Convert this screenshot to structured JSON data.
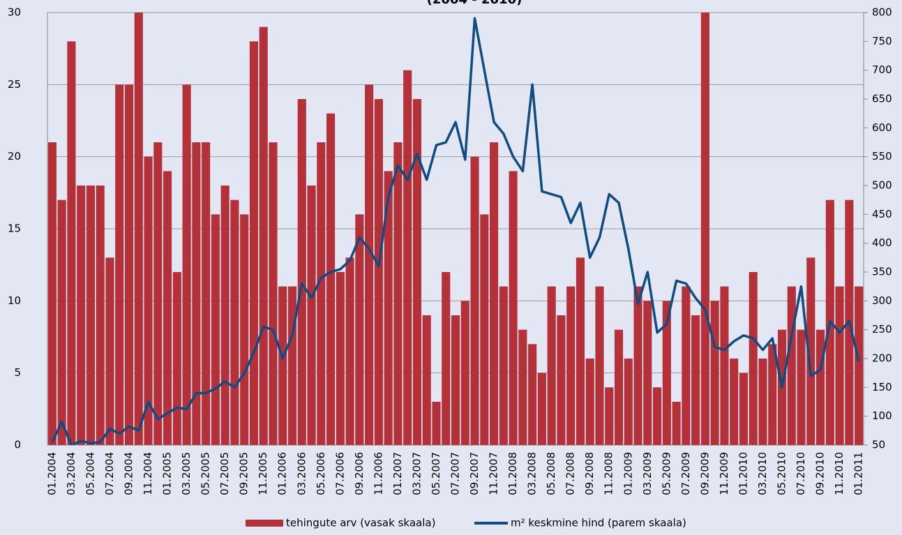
{
  "chart_data": {
    "type": "bar",
    "title": "(2004 - 2010)",
    "categories": [
      "01.2004",
      null,
      "03.2004",
      null,
      "05.2004",
      null,
      "07.2004",
      null,
      "09.2004",
      null,
      "11.2004",
      null,
      "01.2005",
      null,
      "03.2005",
      null,
      "05.2005",
      null,
      "07.2005",
      null,
      "09.2005",
      null,
      "11.2005",
      null,
      "01.2006",
      null,
      "03.2006",
      null,
      "05.2006",
      null,
      "07.2006",
      null,
      "09.2006",
      null,
      "11.2006",
      null,
      "01.2007",
      null,
      "03.2007",
      null,
      "05.2007",
      null,
      "07.2007",
      null,
      "09.2007",
      null,
      "11.2007",
      null,
      "01.2008",
      null,
      "03.2008",
      null,
      "05.2008",
      null,
      "07.2008",
      null,
      "09.2008",
      null,
      "11.2008",
      null,
      "01.2009",
      null,
      "03.2009",
      null,
      "05.2009",
      null,
      "07.2009",
      null,
      "09.2009",
      null,
      "11.2009",
      null,
      "01.2010",
      null,
      "03.2010",
      null,
      "05.2010",
      null,
      "07.2010",
      null,
      "09.2010",
      null,
      "11.2010",
      null,
      "01.2011"
    ],
    "series": [
      {
        "name": "tehingute arv (vasak skaala)",
        "type": "bar",
        "color": "#b5313a",
        "values": [
          21,
          17,
          28,
          18,
          18,
          18,
          13,
          25,
          25,
          30,
          20,
          21,
          19,
          12,
          25,
          21,
          21,
          16,
          18,
          17,
          16,
          28,
          29,
          21,
          11,
          11,
          24,
          18,
          21,
          23,
          12,
          13,
          16,
          25,
          24,
          19,
          21,
          26,
          24,
          9,
          3,
          12,
          9,
          10,
          20,
          16,
          21,
          11,
          19,
          8,
          7,
          5,
          11,
          9,
          11,
          13,
          6,
          11,
          4,
          8,
          6,
          11,
          10,
          4,
          10,
          3,
          11,
          9,
          32,
          10,
          11,
          6,
          5,
          12,
          6,
          7,
          8,
          11,
          8,
          13,
          8,
          17,
          11,
          17,
          11
        ]
      },
      {
        "name": "m² keskmine hind (parem skaala)",
        "type": "line",
        "axis": "y2",
        "color": "#0f4c81",
        "values": [
          55,
          90,
          50,
          57,
          53,
          55,
          78,
          70,
          82,
          75,
          125,
          95,
          105,
          115,
          112,
          140,
          140,
          148,
          160,
          150,
          175,
          210,
          255,
          250,
          200,
          240,
          330,
          305,
          340,
          350,
          355,
          370,
          410,
          390,
          360,
          480,
          535,
          510,
          555,
          510,
          570,
          575,
          610,
          545,
          790,
          700,
          610,
          590,
          550,
          525,
          675,
          490,
          485,
          480,
          435,
          470,
          375,
          410,
          485,
          470,
          390,
          295,
          350,
          245,
          260,
          335,
          330,
          305,
          285,
          220,
          215,
          230,
          240,
          235,
          215,
          235,
          150,
          240,
          325,
          170,
          180,
          265,
          245,
          265,
          195
        ]
      }
    ],
    "ylim": [
      0,
      30
    ],
    "yticks": [
      0,
      5,
      10,
      15,
      20,
      25,
      30
    ],
    "y2lim": [
      50,
      800
    ],
    "y2ticks": [
      50,
      100,
      150,
      200,
      250,
      300,
      350,
      400,
      450,
      500,
      550,
      600,
      650,
      700,
      750,
      800
    ],
    "grid": true,
    "legend": "bottom"
  }
}
